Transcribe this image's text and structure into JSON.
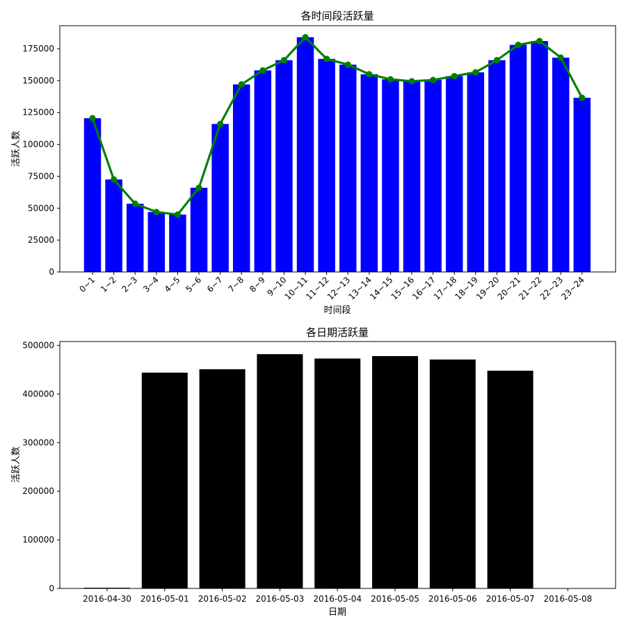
{
  "colors": {
    "chart1_bar": "#0000ff",
    "chart1_line": "#008000",
    "chart2_bar": "#000000",
    "axes": "#000000",
    "background": "#ffffff"
  },
  "chart_data": [
    {
      "type": "bar",
      "title": "各时间段活跃量",
      "xlabel": "时间段",
      "ylabel": "活跃人数",
      "categories": [
        "0~1",
        "1~2",
        "2~3",
        "3~4",
        "4~5",
        "5~6",
        "6~7",
        "7~8",
        "8~9",
        "9~10",
        "10~11",
        "11~12",
        "12~13",
        "13~14",
        "14~15",
        "15~16",
        "16~17",
        "17~18",
        "18~19",
        "19~20",
        "20~21",
        "21~22",
        "22~23",
        "23~24"
      ],
      "series": [
        {
          "type": "bar",
          "values": [
            120500,
            72500,
            53500,
            47000,
            45000,
            66000,
            116000,
            147000,
            158000,
            166000,
            184000,
            167000,
            162500,
            155000,
            151000,
            149500,
            150500,
            153500,
            156500,
            166000,
            178000,
            181000,
            168000,
            136500
          ]
        },
        {
          "type": "line",
          "values": [
            120500,
            72500,
            53500,
            47000,
            45000,
            66000,
            116000,
            147000,
            158000,
            166000,
            184000,
            167000,
            162500,
            155000,
            151000,
            149500,
            150500,
            153500,
            156500,
            166000,
            178000,
            181000,
            168000,
            136500
          ]
        }
      ],
      "ylim": [
        0,
        193000
      ],
      "yticks": [
        0,
        25000,
        50000,
        75000,
        100000,
        125000,
        150000,
        175000
      ],
      "grid": false,
      "legend": "none"
    },
    {
      "type": "bar",
      "title": "各日期活跃量",
      "xlabel": "日期",
      "ylabel": "活跃人数",
      "categories": [
        "2016-04-30",
        "2016-05-01",
        "2016-05-02",
        "2016-05-03",
        "2016-05-04",
        "2016-05-05",
        "2016-05-06",
        "2016-05-07",
        "2016-05-08"
      ],
      "values": [
        1500,
        444000,
        451000,
        482000,
        473000,
        478000,
        471000,
        448000,
        0
      ],
      "ylim": [
        0,
        508000
      ],
      "yticks": [
        0,
        100000,
        200000,
        300000,
        400000,
        500000
      ],
      "grid": false,
      "legend": "none"
    }
  ]
}
